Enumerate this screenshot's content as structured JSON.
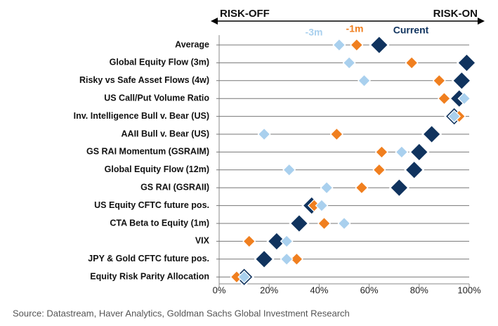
{
  "chart_data": {
    "type": "dot",
    "annotations": [
      "RISK-OFF",
      "RISK-ON"
    ],
    "categories": [
      "Average",
      "Global Equity Flow (3m)",
      "Risky vs Safe Asset Flows (4w)",
      "US Call/Put Volume Ratio",
      "Inv. Intelligence Bull v. Bear (US)",
      "AAII Bull v. Bear (US)",
      "GS RAI Momentum (GSRAIM)",
      "Global Equity Flow (12m)",
      "GS RAI (GSRAII)",
      "US Equity CFTC future pos.",
      "CTA Beta to Equity (1m)",
      "VIX",
      "JPY & Gold CFTC future pos.",
      "Equity Risk Parity Allocation"
    ],
    "series": [
      {
        "name": "Current",
        "color": "#10335e",
        "values": [
          64,
          99,
          97,
          96,
          94,
          85,
          80,
          78,
          72,
          37,
          32,
          23,
          18,
          10
        ]
      },
      {
        "name": "-1m",
        "color": "#f07f1f",
        "values": [
          55,
          77,
          88,
          90,
          96,
          47,
          65,
          64,
          57,
          38,
          42,
          12,
          31,
          7
        ]
      },
      {
        "name": "-3m",
        "color": "#a9d0ee",
        "values": [
          48,
          52,
          58,
          98,
          94,
          18,
          73,
          28,
          43,
          41,
          50,
          27,
          27,
          10
        ]
      }
    ],
    "xlim": [
      0,
      100
    ],
    "xticks": [
      {
        "value": 0,
        "label": "0%"
      },
      {
        "value": 20,
        "label": "20%"
      },
      {
        "value": 40,
        "label": "40%"
      },
      {
        "value": 60,
        "label": "60%"
      },
      {
        "value": 80,
        "label": "80%"
      },
      {
        "value": 100,
        "label": "100%"
      }
    ],
    "source": "Source: Datastream, Haver Analytics, Goldman Sachs Global Investment Research"
  }
}
